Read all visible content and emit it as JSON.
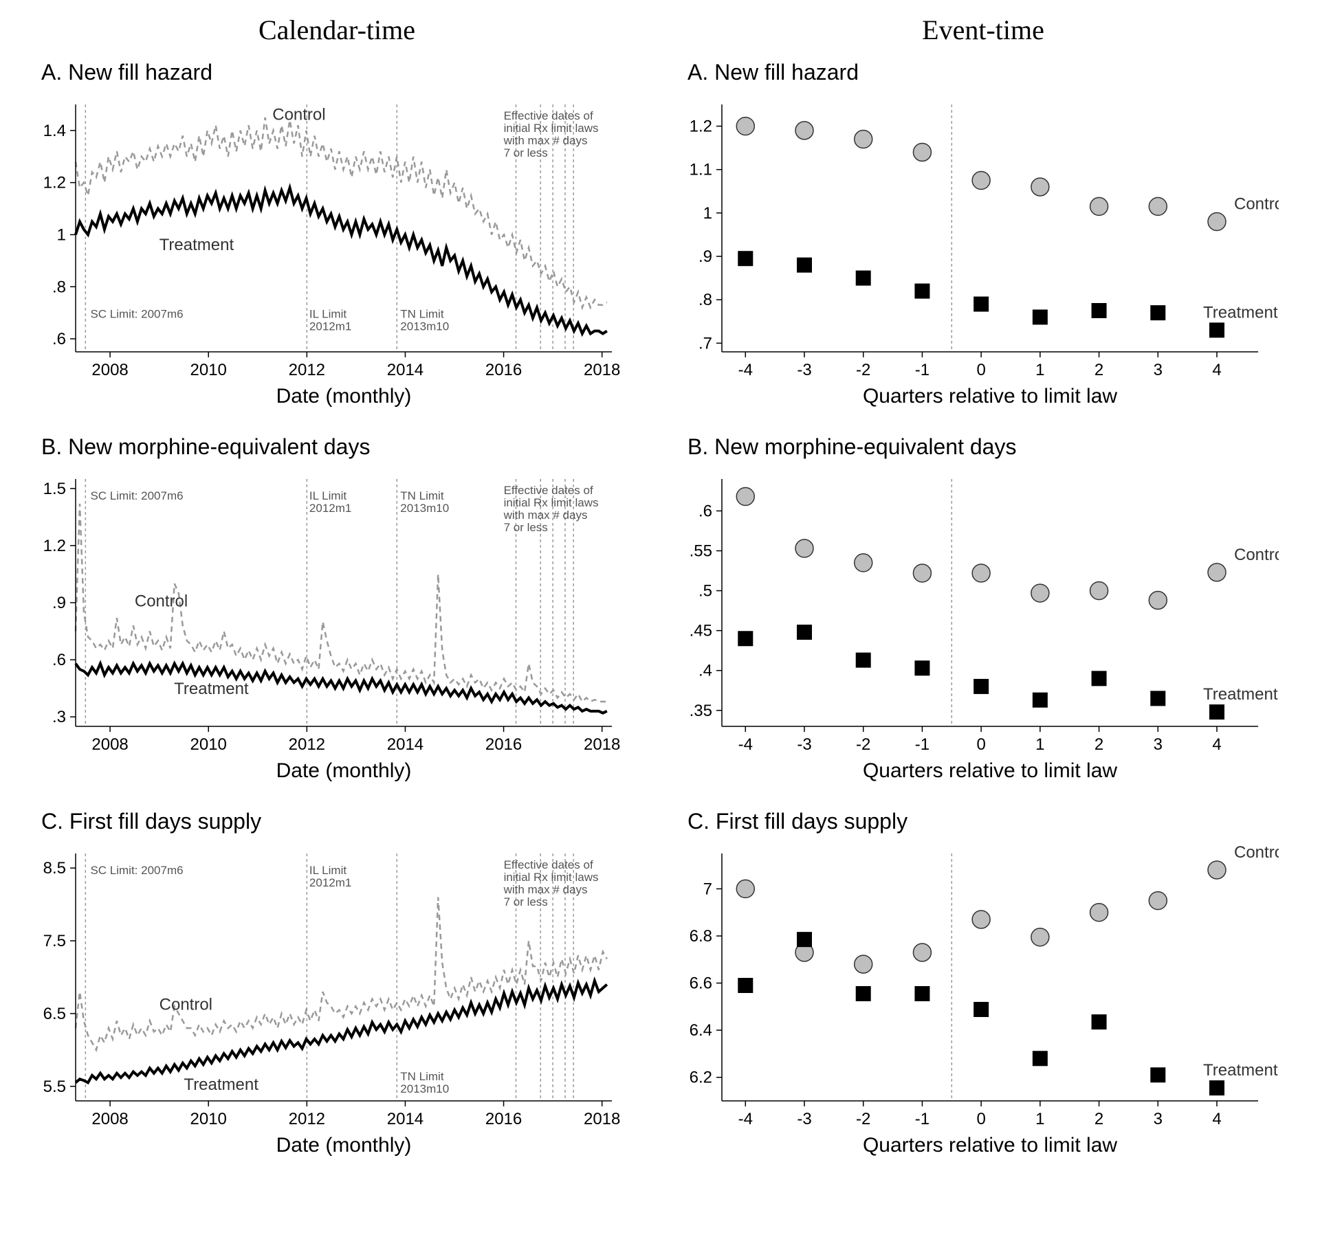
{
  "headers": {
    "left": "Calendar-time",
    "right": "Event-time"
  },
  "colors": {
    "control_line": "#999999",
    "treatment_line": "#000000",
    "control_fill": "#bfbfbf",
    "treatment_fill": "#000000",
    "vline": "#999999"
  },
  "left_common": {
    "x_ticks": [
      2008,
      2010,
      2012,
      2014,
      2016,
      2018
    ],
    "x_label": "Date (monthly)",
    "vlines": [
      2007.5,
      2012.0,
      2013.83,
      2016.25,
      2016.75,
      2017.0,
      2017.25,
      2017.42
    ],
    "annot_sc": "SC Limit: 2007m6",
    "annot_il": "IL Limit\n2012m1",
    "annot_tn": "TN Limit\n2013m10",
    "annot_eff": "Effective dates of\ninitial Rx limit laws\nwith max # days\n7 or less",
    "control_label": "Control",
    "treatment_label": "Treatment"
  },
  "right_common": {
    "x_ticks": [
      -4,
      -3,
      -2,
      -1,
      0,
      1,
      2,
      3,
      4
    ],
    "x_label": "Quarters relative to limit law",
    "vline": -0.5,
    "control_label": "Control",
    "treatment_label": "Treatment"
  },
  "panels": {
    "A_left": {
      "title": "A. New fill hazard",
      "y_ticks": [
        0.6,
        0.8,
        1,
        1.2,
        1.4
      ],
      "y_labels": [
        ".6",
        ".8",
        "1",
        "1.2",
        "1.4"
      ],
      "ylim": [
        0.55,
        1.5
      ],
      "control": [
        1.28,
        1.18,
        1.2,
        1.15,
        1.24,
        1.22,
        1.28,
        1.2,
        1.3,
        1.25,
        1.32,
        1.24,
        1.3,
        1.28,
        1.32,
        1.25,
        1.3,
        1.28,
        1.33,
        1.28,
        1.34,
        1.3,
        1.35,
        1.3,
        1.35,
        1.32,
        1.38,
        1.3,
        1.35,
        1.28,
        1.38,
        1.3,
        1.4,
        1.35,
        1.42,
        1.33,
        1.38,
        1.3,
        1.4,
        1.32,
        1.4,
        1.34,
        1.42,
        1.33,
        1.4,
        1.32,
        1.45,
        1.35,
        1.4,
        1.33,
        1.42,
        1.34,
        1.44,
        1.35,
        1.42,
        1.3,
        1.4,
        1.3,
        1.38,
        1.3,
        1.35,
        1.28,
        1.33,
        1.25,
        1.32,
        1.25,
        1.3,
        1.22,
        1.3,
        1.25,
        1.32,
        1.25,
        1.3,
        1.23,
        1.32,
        1.24,
        1.3,
        1.22,
        1.3,
        1.2,
        1.28,
        1.2,
        1.3,
        1.2,
        1.28,
        1.18,
        1.25,
        1.15,
        1.22,
        1.14,
        1.25,
        1.16,
        1.2,
        1.12,
        1.18,
        1.1,
        1.15,
        1.08,
        1.1,
        1.05,
        1.08,
        1.0,
        1.05,
        0.98,
        1.0,
        0.95,
        1.0,
        0.93,
        0.98,
        0.9,
        0.95,
        0.88,
        0.9,
        0.85,
        0.88,
        0.82,
        0.86,
        0.8,
        0.83,
        0.78,
        0.8,
        0.74,
        0.78,
        0.72,
        0.76,
        0.72,
        0.75,
        0.73,
        0.73,
        0.74
      ],
      "treatment": [
        1.0,
        1.05,
        1.02,
        1.0,
        1.05,
        1.03,
        1.08,
        1.02,
        1.07,
        1.05,
        1.08,
        1.04,
        1.08,
        1.06,
        1.1,
        1.05,
        1.1,
        1.08,
        1.12,
        1.07,
        1.1,
        1.08,
        1.12,
        1.08,
        1.13,
        1.1,
        1.14,
        1.08,
        1.12,
        1.08,
        1.14,
        1.1,
        1.15,
        1.12,
        1.16,
        1.1,
        1.14,
        1.1,
        1.15,
        1.1,
        1.15,
        1.12,
        1.16,
        1.1,
        1.15,
        1.1,
        1.17,
        1.12,
        1.16,
        1.12,
        1.17,
        1.13,
        1.18,
        1.12,
        1.15,
        1.1,
        1.14,
        1.08,
        1.12,
        1.07,
        1.1,
        1.05,
        1.08,
        1.03,
        1.07,
        1.02,
        1.05,
        1.0,
        1.05,
        1.0,
        1.06,
        1.02,
        1.04,
        1.0,
        1.05,
        1.0,
        1.04,
        0.98,
        1.02,
        0.97,
        1.0,
        0.95,
        1.0,
        0.95,
        0.98,
        0.93,
        0.96,
        0.9,
        0.94,
        0.88,
        0.95,
        0.9,
        0.92,
        0.86,
        0.9,
        0.84,
        0.88,
        0.82,
        0.85,
        0.8,
        0.83,
        0.78,
        0.8,
        0.75,
        0.78,
        0.73,
        0.77,
        0.72,
        0.75,
        0.7,
        0.73,
        0.68,
        0.72,
        0.67,
        0.7,
        0.66,
        0.69,
        0.65,
        0.68,
        0.64,
        0.67,
        0.63,
        0.66,
        0.62,
        0.65,
        0.62,
        0.63,
        0.63,
        0.62,
        0.63
      ]
    },
    "A_right": {
      "title": "A. New fill hazard",
      "y_ticks": [
        0.7,
        0.8,
        0.9,
        1,
        1.1,
        1.2
      ],
      "y_labels": [
        ".7",
        ".8",
        ".9",
        "1",
        "1.1",
        "1.2"
      ],
      "ylim": [
        0.68,
        1.25
      ],
      "control": [
        1.2,
        1.19,
        1.17,
        1.14,
        1.075,
        1.06,
        1.015,
        1.015,
        0.98
      ],
      "treatment": [
        0.895,
        0.88,
        0.85,
        0.82,
        0.79,
        0.76,
        0.775,
        0.77,
        0.73
      ]
    },
    "B_left": {
      "title": "B. New morphine-equivalent days",
      "y_ticks": [
        0.3,
        0.6,
        0.9,
        1.2,
        1.5
      ],
      "y_labels": [
        ".3",
        ".6",
        ".9",
        "1.2",
        "1.5"
      ],
      "ylim": [
        0.25,
        1.55
      ],
      "control": [
        0.75,
        1.42,
        0.85,
        0.72,
        0.7,
        0.66,
        0.68,
        0.65,
        0.7,
        0.66,
        0.82,
        0.68,
        0.72,
        0.67,
        0.78,
        0.68,
        0.72,
        0.66,
        0.75,
        0.67,
        0.7,
        0.65,
        0.72,
        0.66,
        1.0,
        0.95,
        0.78,
        0.7,
        0.68,
        0.64,
        0.7,
        0.65,
        0.68,
        0.64,
        0.7,
        0.65,
        0.75,
        0.66,
        0.68,
        0.62,
        0.66,
        0.6,
        0.65,
        0.6,
        0.66,
        0.6,
        0.68,
        0.62,
        0.66,
        0.58,
        0.64,
        0.58,
        0.63,
        0.58,
        0.6,
        0.55,
        0.62,
        0.56,
        0.6,
        0.55,
        0.8,
        0.7,
        0.62,
        0.56,
        0.58,
        0.54,
        0.6,
        0.55,
        0.58,
        0.52,
        0.58,
        0.54,
        0.6,
        0.55,
        0.58,
        0.52,
        0.56,
        0.5,
        0.55,
        0.5,
        0.54,
        0.5,
        0.55,
        0.5,
        0.54,
        0.48,
        0.52,
        0.48,
        1.05,
        0.65,
        0.52,
        0.48,
        0.5,
        0.47,
        0.5,
        0.46,
        0.52,
        0.48,
        0.5,
        0.45,
        0.48,
        0.44,
        0.48,
        0.45,
        0.5,
        0.46,
        0.48,
        0.44,
        0.46,
        0.43,
        0.58,
        0.48,
        0.46,
        0.42,
        0.45,
        0.42,
        0.44,
        0.4,
        0.43,
        0.4,
        0.42,
        0.39,
        0.42,
        0.38,
        0.4,
        0.38,
        0.39,
        0.38,
        0.38,
        0.38
      ],
      "treatment": [
        0.58,
        0.55,
        0.54,
        0.52,
        0.56,
        0.53,
        0.58,
        0.52,
        0.56,
        0.53,
        0.57,
        0.53,
        0.56,
        0.53,
        0.58,
        0.54,
        0.57,
        0.53,
        0.58,
        0.54,
        0.57,
        0.53,
        0.57,
        0.53,
        0.58,
        0.54,
        0.58,
        0.53,
        0.57,
        0.52,
        0.56,
        0.52,
        0.56,
        0.52,
        0.56,
        0.52,
        0.56,
        0.51,
        0.54,
        0.5,
        0.54,
        0.5,
        0.53,
        0.49,
        0.53,
        0.49,
        0.54,
        0.5,
        0.53,
        0.48,
        0.52,
        0.48,
        0.51,
        0.48,
        0.5,
        0.46,
        0.5,
        0.47,
        0.5,
        0.46,
        0.5,
        0.46,
        0.49,
        0.45,
        0.49,
        0.45,
        0.5,
        0.46,
        0.49,
        0.44,
        0.49,
        0.45,
        0.5,
        0.46,
        0.49,
        0.44,
        0.48,
        0.43,
        0.47,
        0.43,
        0.47,
        0.43,
        0.47,
        0.43,
        0.47,
        0.42,
        0.46,
        0.42,
        0.46,
        0.42,
        0.45,
        0.41,
        0.44,
        0.41,
        0.44,
        0.4,
        0.45,
        0.41,
        0.43,
        0.39,
        0.42,
        0.38,
        0.42,
        0.39,
        0.43,
        0.39,
        0.42,
        0.38,
        0.4,
        0.37,
        0.4,
        0.37,
        0.39,
        0.36,
        0.38,
        0.36,
        0.37,
        0.35,
        0.36,
        0.34,
        0.36,
        0.34,
        0.35,
        0.33,
        0.34,
        0.33,
        0.33,
        0.33,
        0.32,
        0.33
      ]
    },
    "B_right": {
      "title": "B. New morphine-equivalent days",
      "y_ticks": [
        0.35,
        0.4,
        0.45,
        0.5,
        0.55,
        0.6
      ],
      "y_labels": [
        ".35",
        ".4",
        ".45",
        ".5",
        ".55",
        ".6"
      ],
      "ylim": [
        0.33,
        0.64
      ],
      "control": [
        0.618,
        0.553,
        0.535,
        0.522,
        0.522,
        0.497,
        0.5,
        0.488,
        0.523
      ],
      "treatment": [
        0.44,
        0.448,
        0.413,
        0.403,
        0.38,
        0.363,
        0.39,
        0.365,
        0.348
      ]
    },
    "C_left": {
      "title": "C. First fill days supply",
      "y_ticks": [
        5.5,
        6.5,
        7.5,
        8.5
      ],
      "y_labels": [
        "5.5",
        "6.5",
        "7.5",
        "8.5"
      ],
      "ylim": [
        5.3,
        8.7
      ],
      "control": [
        6.3,
        6.8,
        6.4,
        6.2,
        6.1,
        6.0,
        6.2,
        6.1,
        6.3,
        6.15,
        6.4,
        6.2,
        6.3,
        6.15,
        6.35,
        6.2,
        6.3,
        6.2,
        6.4,
        6.25,
        6.3,
        6.2,
        6.35,
        6.25,
        6.6,
        6.5,
        6.4,
        6.3,
        6.3,
        6.2,
        6.35,
        6.25,
        6.3,
        6.2,
        6.35,
        6.25,
        6.4,
        6.3,
        6.35,
        6.25,
        6.4,
        6.3,
        6.4,
        6.3,
        6.45,
        6.35,
        6.5,
        6.35,
        6.45,
        6.3,
        6.5,
        6.35,
        6.5,
        6.35,
        6.45,
        6.35,
        6.55,
        6.4,
        6.55,
        6.4,
        6.8,
        6.65,
        6.6,
        6.5,
        6.55,
        6.45,
        6.6,
        6.5,
        6.6,
        6.5,
        6.65,
        6.55,
        6.7,
        6.6,
        6.7,
        6.55,
        6.7,
        6.55,
        6.65,
        6.55,
        6.7,
        6.6,
        6.75,
        6.6,
        6.75,
        6.6,
        6.75,
        6.6,
        8.1,
        7.2,
        6.85,
        6.7,
        6.85,
        6.7,
        6.9,
        6.75,
        7.0,
        6.8,
        6.95,
        6.8,
        6.95,
        6.8,
        7.0,
        6.85,
        7.1,
        6.9,
        7.1,
        6.9,
        7.1,
        6.9,
        7.5,
        7.15,
        7.15,
        6.95,
        7.2,
        7.0,
        7.2,
        7.0,
        7.25,
        7.05,
        7.25,
        7.05,
        7.3,
        7.1,
        7.3,
        7.1,
        7.3,
        7.1,
        7.35,
        7.25
      ],
      "treatment": [
        5.55,
        5.6,
        5.58,
        5.55,
        5.65,
        5.6,
        5.68,
        5.6,
        5.65,
        5.6,
        5.68,
        5.62,
        5.68,
        5.62,
        5.7,
        5.65,
        5.7,
        5.65,
        5.75,
        5.68,
        5.75,
        5.68,
        5.78,
        5.7,
        5.8,
        5.72,
        5.82,
        5.75,
        5.85,
        5.78,
        5.88,
        5.8,
        5.9,
        5.82,
        5.92,
        5.85,
        5.95,
        5.88,
        5.98,
        5.9,
        6.0,
        5.92,
        6.02,
        5.95,
        6.05,
        5.98,
        6.08,
        6.0,
        6.1,
        6.0,
        6.12,
        6.03,
        6.13,
        6.05,
        6.1,
        6.02,
        6.15,
        6.08,
        6.15,
        6.08,
        6.2,
        6.12,
        6.2,
        6.12,
        6.22,
        6.15,
        6.28,
        6.18,
        6.3,
        6.2,
        6.32,
        6.22,
        6.38,
        6.28,
        6.35,
        6.25,
        6.38,
        6.28,
        6.35,
        6.25,
        6.4,
        6.3,
        6.42,
        6.32,
        6.45,
        6.35,
        6.48,
        6.38,
        6.5,
        6.4,
        6.52,
        6.42,
        6.55,
        6.45,
        6.58,
        6.48,
        6.65,
        6.5,
        6.62,
        6.5,
        6.65,
        6.52,
        6.7,
        6.58,
        6.78,
        6.62,
        6.8,
        6.65,
        6.78,
        6.62,
        6.85,
        6.7,
        6.82,
        6.68,
        6.88,
        6.72,
        6.85,
        6.7,
        6.9,
        6.75,
        6.88,
        6.72,
        6.92,
        6.78,
        6.9,
        6.75,
        6.95,
        6.8,
        6.85,
        6.9
      ]
    },
    "C_right": {
      "title": "C. First fill days supply",
      "y_ticks": [
        6.2,
        6.4,
        6.6,
        6.8,
        7
      ],
      "y_labels": [
        "6.2",
        "6.4",
        "6.6",
        "6.8",
        "7"
      ],
      "ylim": [
        6.1,
        7.15
      ],
      "control": [
        7.0,
        6.73,
        6.68,
        6.73,
        6.87,
        6.795,
        6.9,
        6.95,
        7.08
      ],
      "treatment": [
        6.59,
        6.785,
        6.555,
        6.555,
        6.488,
        6.28,
        6.435,
        6.21,
        6.155
      ]
    }
  }
}
